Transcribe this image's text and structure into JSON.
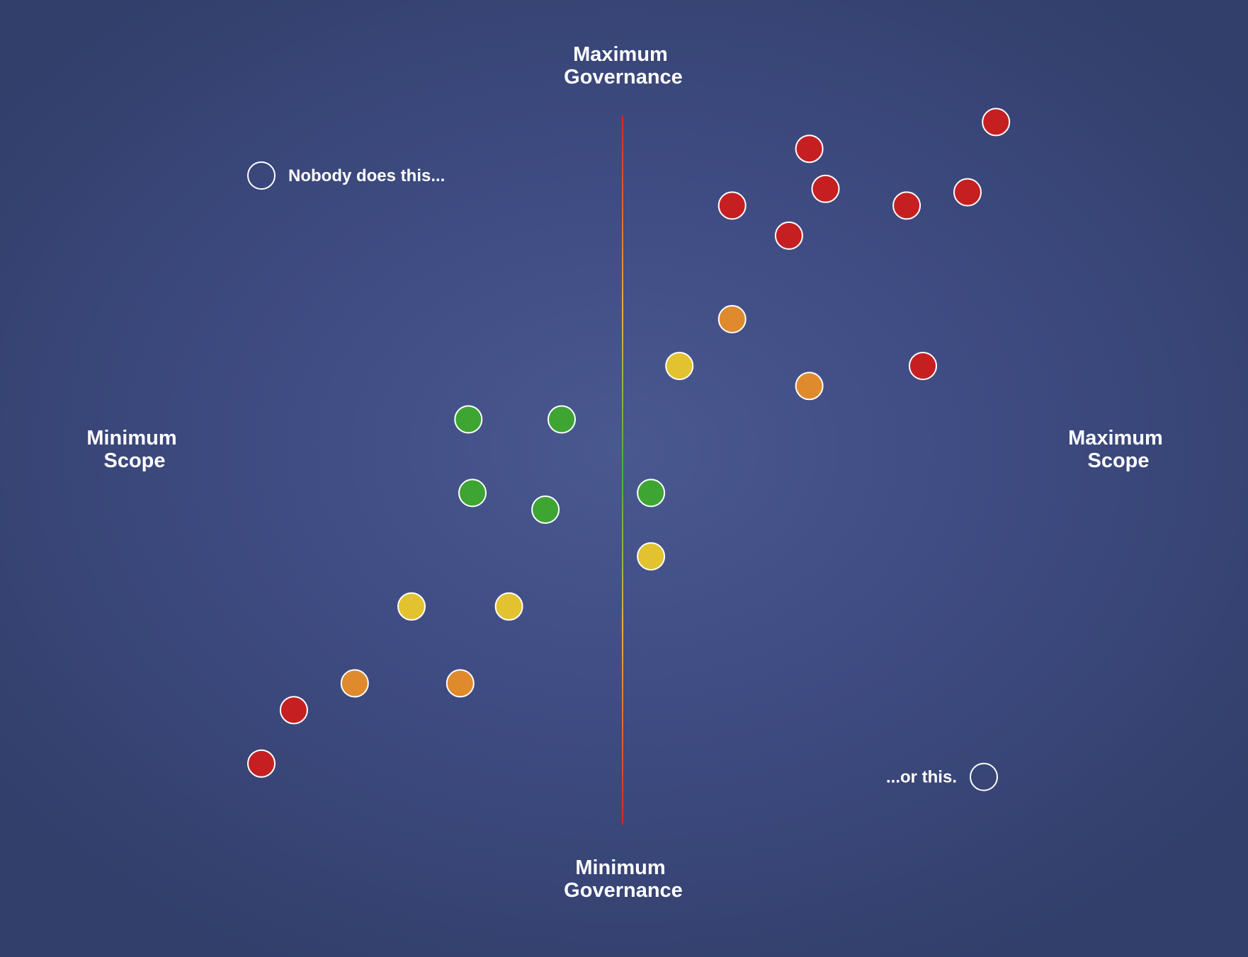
{
  "chart_data": {
    "type": "scatter",
    "axes": {
      "top": [
        "Maximum",
        "Governance"
      ],
      "bottom": [
        "Minimum",
        "Governance"
      ],
      "left": [
        "Minimum",
        "Scope"
      ],
      "right": [
        "Maximum",
        "Scope"
      ]
    },
    "xlim": [
      -10,
      10
    ],
    "ylim": [
      -10,
      10
    ],
    "grid": false,
    "colors": {
      "red": "#c51f22",
      "orange": "#df8a2c",
      "yellow": "#e2c22e",
      "green": "#3ea533"
    },
    "points": [
      {
        "x": 9.2,
        "y": 9.8,
        "color": "red"
      },
      {
        "x": 4.6,
        "y": 9.0,
        "color": "red"
      },
      {
        "x": 5.0,
        "y": 7.8,
        "color": "red"
      },
      {
        "x": 8.5,
        "y": 7.7,
        "color": "red"
      },
      {
        "x": 2.7,
        "y": 7.3,
        "color": "red"
      },
      {
        "x": 7.0,
        "y": 7.3,
        "color": "red"
      },
      {
        "x": 4.1,
        "y": 6.4,
        "color": "red"
      },
      {
        "x": 2.7,
        "y": 3.9,
        "color": "orange"
      },
      {
        "x": 1.4,
        "y": 2.5,
        "color": "yellow"
      },
      {
        "x": 7.4,
        "y": 2.5,
        "color": "red"
      },
      {
        "x": 4.6,
        "y": 1.9,
        "color": "orange"
      },
      {
        "x": -3.8,
        "y": 0.9,
        "color": "green"
      },
      {
        "x": -1.5,
        "y": 0.9,
        "color": "green"
      },
      {
        "x": -3.7,
        "y": -1.3,
        "color": "green"
      },
      {
        "x": -1.9,
        "y": -1.8,
        "color": "green"
      },
      {
        "x": 0.7,
        "y": -1.3,
        "color": "green"
      },
      {
        "x": 0.7,
        "y": -3.2,
        "color": "yellow"
      },
      {
        "x": -5.2,
        "y": -4.7,
        "color": "yellow"
      },
      {
        "x": -2.8,
        "y": -4.7,
        "color": "yellow"
      },
      {
        "x": -6.6,
        "y": -7.0,
        "color": "orange"
      },
      {
        "x": -4.0,
        "y": -7.0,
        "color": "orange"
      },
      {
        "x": -8.1,
        "y": -7.8,
        "color": "red"
      },
      {
        "x": -8.9,
        "y": -9.4,
        "color": "red"
      }
    ],
    "annotations": [
      {
        "text": "Nobody does this...",
        "x": -8.9,
        "y": 8.2,
        "marker": "hollow-circle",
        "text_side": "right"
      },
      {
        "text": "...or this.",
        "x": 8.9,
        "y": -9.8,
        "marker": "hollow-circle",
        "text_side": "left"
      }
    ]
  }
}
